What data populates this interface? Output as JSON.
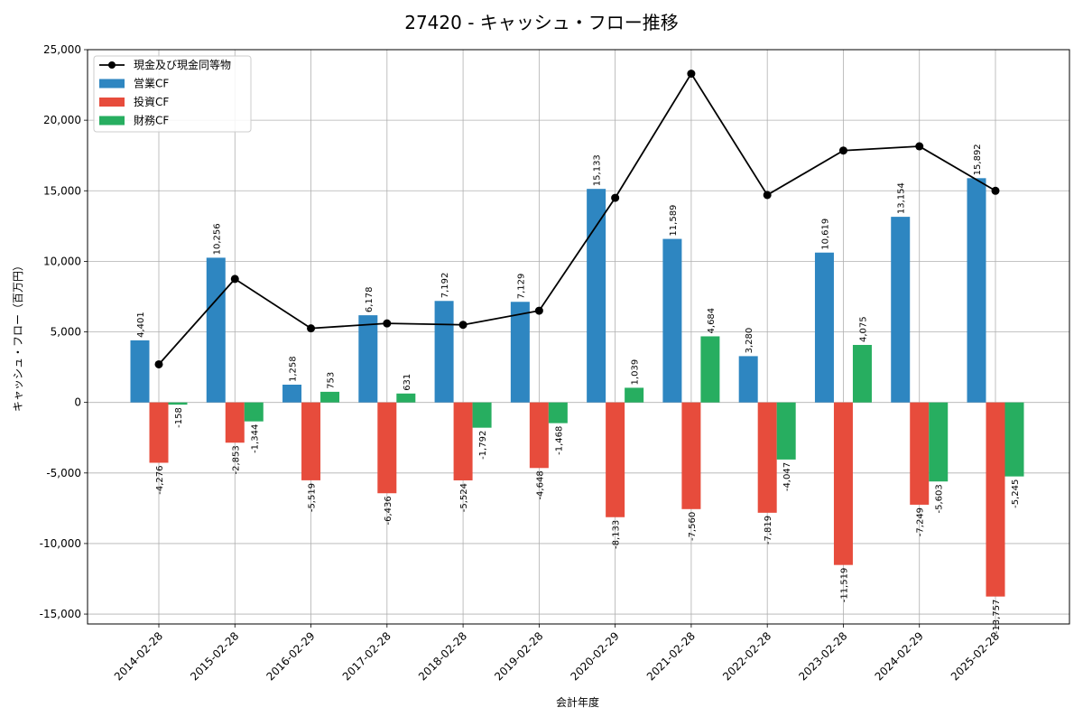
{
  "chart_data": {
    "type": "bar",
    "title": "27420 - キャッシュ・フロー推移",
    "xlabel": "会計年度",
    "ylabel": "キャッシュ・フロー（百万円）",
    "ylim": [
      -15700,
      25000
    ],
    "yticks": [
      -15000,
      -10000,
      -5000,
      0,
      5000,
      10000,
      15000,
      20000,
      25000
    ],
    "ytick_labels": [
      "-15,000",
      "-10,000",
      "-5,000",
      "0",
      "5,000",
      "10,000",
      "15,000",
      "20,000",
      "25,000"
    ],
    "grid": true,
    "legend_position": "top-left",
    "categories": [
      "2014-02-28",
      "2015-02-28",
      "2016-02-29",
      "2017-02-28",
      "2018-02-28",
      "2019-02-28",
      "2020-02-29",
      "2021-02-28",
      "2022-02-28",
      "2023-02-28",
      "2024-02-29",
      "2025-02-28"
    ],
    "series": [
      {
        "name": "営業CF",
        "kind": "bar",
        "color": "#2e86c1",
        "values": [
          4401,
          10256,
          1258,
          6178,
          7192,
          7129,
          15133,
          11589,
          3280,
          10619,
          13154,
          15892
        ],
        "labels": [
          "4,401",
          "10,256",
          "1,258",
          "6,178",
          "7,192",
          "7,129",
          "15,133",
          "11,589",
          "3,280",
          "10,619",
          "13,154",
          "15,892"
        ]
      },
      {
        "name": "投資CF",
        "kind": "bar",
        "color": "#e74c3c",
        "values": [
          -4276,
          -2853,
          -5519,
          -6436,
          -5524,
          -4648,
          -8133,
          -7560,
          -7819,
          -11519,
          -7249,
          -13757
        ],
        "labels": [
          "-4,276",
          "-2,853",
          "-5,519",
          "-6,436",
          "-5,524",
          "-4,648",
          "-8,133",
          "-7,560",
          "-7,819",
          "-11,519",
          "-7,249",
          "-13,757"
        ]
      },
      {
        "name": "財務CF",
        "kind": "bar",
        "color": "#27ae60",
        "values": [
          -158,
          -1344,
          753,
          631,
          -1792,
          -1468,
          1039,
          4684,
          -4047,
          4075,
          -5603,
          -5245
        ],
        "labels": [
          "-158",
          "-1,344",
          "753",
          "631",
          "-1,792",
          "-1,468",
          "1,039",
          "4,684",
          "-4,047",
          "4,075",
          "-5,603",
          "-5,245"
        ]
      },
      {
        "name": "現金及び現金同等物",
        "kind": "line",
        "color": "#000000",
        "values": [
          2700,
          8750,
          5250,
          5600,
          5500,
          6500,
          14500,
          23300,
          14700,
          17850,
          18150,
          15000
        ]
      }
    ]
  }
}
